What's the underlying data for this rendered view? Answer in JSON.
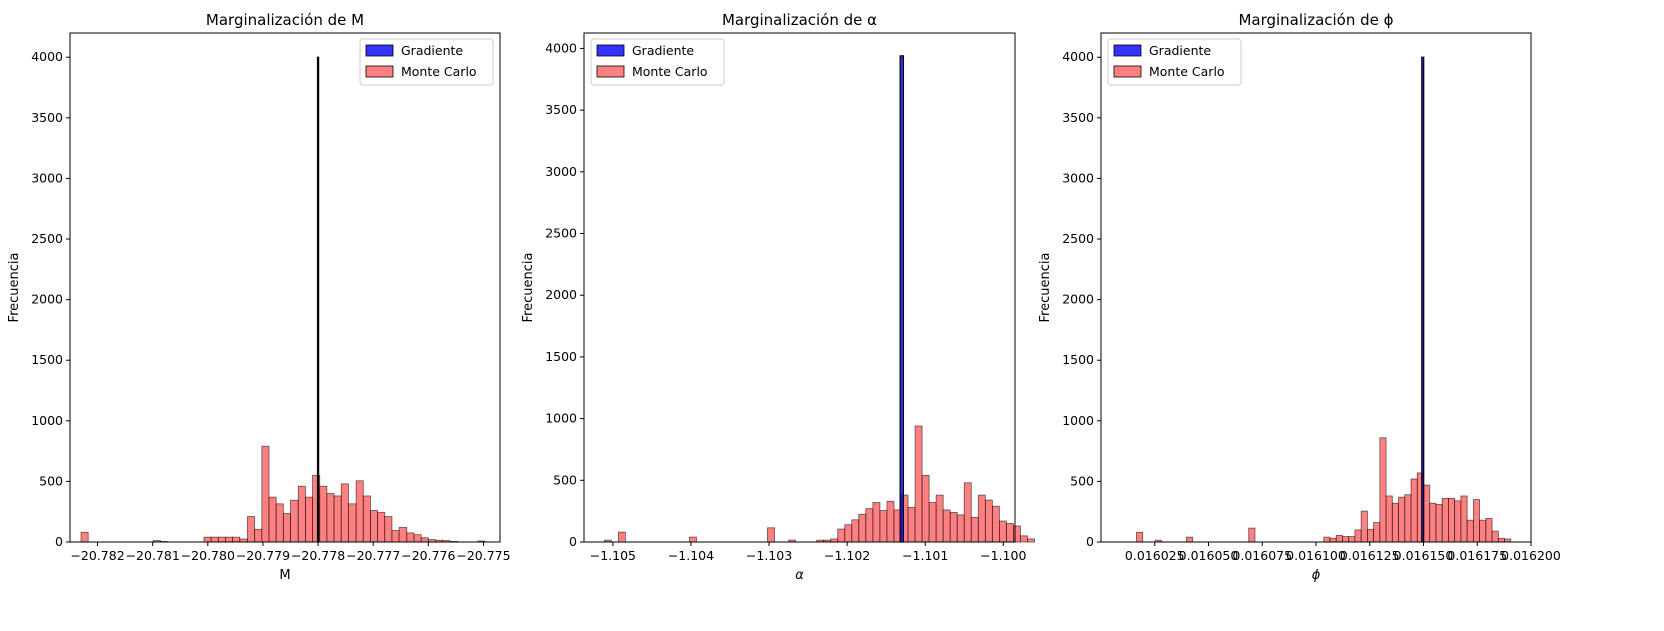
{
  "figure": {
    "panels_count": 3
  },
  "chart_data": [
    {
      "type": "bar",
      "title": "Marginalización de M",
      "xlabel": "M",
      "ylabel": "Frecuencia",
      "xlim": [
        -20.7825,
        -20.7747
      ],
      "ylim": [
        0,
        4200
      ],
      "xticks": [
        -20.782,
        -20.781,
        -20.78,
        -20.779,
        -20.778,
        -20.777,
        -20.776,
        -20.775
      ],
      "xtick_labels": [
        "−20.782",
        "−20.781",
        "−20.780",
        "−20.779",
        "−20.778",
        "−20.777",
        "−20.776",
        "−20.775"
      ],
      "yticks": [
        0,
        500,
        1000,
        1500,
        2000,
        2500,
        3000,
        3500,
        4000
      ],
      "ytick_labels": [
        "0",
        "500",
        "1000",
        "1500",
        "2000",
        "2500",
        "3000",
        "3500",
        "4000"
      ],
      "legend_position": "top-right",
      "grid": false,
      "series": [
        {
          "name": "Gradiente",
          "color": "#0000ff",
          "bins": [
            [
              -20.77801,
              -20.77799,
              4000
            ]
          ]
        },
        {
          "name": "Monte Carlo",
          "color": "#ff5555",
          "bins": [
            [
              -20.7823,
              -20.78217,
              80
            ],
            [
              -20.78099,
              -20.78086,
              12
            ],
            [
              -20.78086,
              -20.78073,
              5
            ],
            [
              -20.78007,
              -20.77994,
              40
            ],
            [
              -20.77994,
              -20.77981,
              40
            ],
            [
              -20.77981,
              -20.77968,
              40
            ],
            [
              -20.77968,
              -20.77955,
              40
            ],
            [
              -20.77955,
              -20.77942,
              40
            ],
            [
              -20.77942,
              -20.77928,
              25
            ],
            [
              -20.77928,
              -20.77915,
              210
            ],
            [
              -20.77915,
              -20.77902,
              105
            ],
            [
              -20.77902,
              -20.77889,
              790
            ],
            [
              -20.77889,
              -20.77876,
              370
            ],
            [
              -20.77876,
              -20.77863,
              315
            ],
            [
              -20.77863,
              -20.7785,
              235
            ],
            [
              -20.7785,
              -20.77836,
              345
            ],
            [
              -20.77836,
              -20.77823,
              460
            ],
            [
              -20.77823,
              -20.7781,
              370
            ],
            [
              -20.7781,
              -20.77797,
              550
            ],
            [
              -20.77797,
              -20.77784,
              460
            ],
            [
              -20.77784,
              -20.77771,
              400
            ],
            [
              -20.77771,
              -20.77758,
              380
            ],
            [
              -20.77758,
              -20.77745,
              480
            ],
            [
              -20.77745,
              -20.77731,
              315
            ],
            [
              -20.77731,
              -20.77718,
              505
            ],
            [
              -20.77718,
              -20.77705,
              380
            ],
            [
              -20.77705,
              -20.77692,
              260
            ],
            [
              -20.77692,
              -20.77679,
              245
            ],
            [
              -20.77679,
              -20.77666,
              210
            ],
            [
              -20.77666,
              -20.77653,
              95
            ],
            [
              -20.77653,
              -20.77639,
              120
            ],
            [
              -20.77639,
              -20.77626,
              75
            ],
            [
              -20.77626,
              -20.77613,
              60
            ],
            [
              -20.77613,
              -20.776,
              35
            ],
            [
              -20.776,
              -20.77587,
              20
            ],
            [
              -20.77587,
              -20.77574,
              15
            ],
            [
              -20.77574,
              -20.77561,
              12
            ],
            [
              -20.77561,
              -20.77547,
              5
            ],
            [
              -20.7751,
              -20.77497,
              8
            ]
          ]
        }
      ]
    },
    {
      "type": "bar",
      "title": "Marginalización de α",
      "xlabel": "α",
      "ylabel": "Frecuencia",
      "xlim": [
        -1.10537,
        -1.09985
      ],
      "ylim": [
        0,
        4125
      ],
      "xticks": [
        -1.105,
        -1.104,
        -1.103,
        -1.102,
        -1.101,
        -1.1
      ],
      "xtick_labels": [
        "−1.105",
        "−1.104",
        "−1.103",
        "−1.102",
        "−1.101",
        "−1.100"
      ],
      "yticks": [
        0,
        500,
        1000,
        1500,
        2000,
        2500,
        3000,
        3500,
        4000
      ],
      "ytick_labels": [
        "0",
        "500",
        "1000",
        "1500",
        "2000",
        "2500",
        "3000",
        "3500",
        "4000"
      ],
      "legend_position": "top-left",
      "grid": false,
      "series": [
        {
          "name": "Gradiente",
          "color": "#0000ff",
          "bins": [
            [
              -1.101321,
              -1.101279,
              3940
            ]
          ]
        },
        {
          "name": "Monte Carlo",
          "color": "#ff5555",
          "bins": [
            [
              -1.10511,
              -1.10502,
              15
            ],
            [
              -1.10493,
              -1.10484,
              80
            ],
            [
              -1.10402,
              -1.10393,
              40
            ],
            [
              -1.10302,
              -1.10293,
              115
            ],
            [
              -1.10275,
              -1.10266,
              15
            ],
            [
              -1.10239,
              -1.1023,
              15
            ],
            [
              -1.1023,
              -1.10221,
              15
            ],
            [
              -1.10221,
              -1.10212,
              25
            ],
            [
              -1.10212,
              -1.10203,
              105
            ],
            [
              -1.10203,
              -1.10194,
              140
            ],
            [
              -1.10194,
              -1.10185,
              180
            ],
            [
              -1.10185,
              -1.10176,
              225
            ],
            [
              -1.10176,
              -1.10167,
              270
            ],
            [
              -1.10167,
              -1.10158,
              320
            ],
            [
              -1.10158,
              -1.10149,
              255
            ],
            [
              -1.10149,
              -1.1014,
              330
            ],
            [
              -1.1014,
              -1.10131,
              260
            ],
            [
              -1.10131,
              -1.10122,
              380
            ],
            [
              -1.10122,
              -1.10113,
              280
            ],
            [
              -1.10113,
              -1.10104,
              940
            ],
            [
              -1.10104,
              -1.10095,
              540
            ],
            [
              -1.10095,
              -1.10086,
              320
            ],
            [
              -1.10086,
              -1.10077,
              380
            ],
            [
              -1.10077,
              -1.10068,
              260
            ],
            [
              -1.10068,
              -1.10059,
              240
            ],
            [
              -1.10059,
              -1.1005,
              220
            ],
            [
              -1.1005,
              -1.10041,
              480
            ],
            [
              -1.10041,
              -1.10032,
              200
            ],
            [
              -1.10032,
              -1.10023,
              380
            ],
            [
              -1.10023,
              -1.10014,
              340
            ],
            [
              -1.10014,
              -1.10005,
              290
            ],
            [
              -1.10005,
              -1.09996,
              170
            ],
            [
              -1.09996,
              -1.09987,
              150
            ],
            [
              -1.09987,
              -1.09978,
              130
            ],
            [
              -1.09978,
              -1.09969,
              50
            ],
            [
              -1.09969,
              -1.0996,
              25
            ]
          ]
        }
      ]
    },
    {
      "type": "bar",
      "title": "Marginalización de ϕ",
      "xlabel": "ϕ",
      "ylabel": "Frecuencia",
      "xlim": [
        0.016,
        0.0162
      ],
      "ylim": [
        0,
        4200
      ],
      "xticks": [
        0.016025,
        0.01605,
        0.016075,
        0.0161,
        0.016125,
        0.01615,
        0.016175,
        0.0162
      ],
      "xtick_labels": [
        "0.016025",
        "0.016050",
        "0.016075",
        "0.016100",
        "0.016125",
        "0.016150",
        "0.016175",
        "0.016200"
      ],
      "yticks": [
        0,
        500,
        1000,
        1500,
        2000,
        2500,
        3000,
        3500,
        4000
      ],
      "ytick_labels": [
        "0",
        "500",
        "1000",
        "1500",
        "2000",
        "2500",
        "3000",
        "3500",
        "4000"
      ],
      "legend_position": "top-left",
      "grid": false,
      "series": [
        {
          "name": "Gradiente",
          "color": "#0000ff",
          "bins": [
            [
              0.0161492,
              0.0161501,
              4000
            ]
          ]
        },
        {
          "name": "Monte Carlo",
          "color": "#ff5555",
          "bins": [
            [
              0.0160165,
              0.0160194,
              80
            ],
            [
              0.0160252,
              0.0160281,
              15
            ],
            [
              0.0160397,
              0.0160426,
              40
            ],
            [
              0.0160687,
              0.0160716,
              115
            ],
            [
              0.0161036,
              0.0161065,
              40
            ],
            [
              0.0161065,
              0.0161094,
              30
            ],
            [
              0.0161094,
              0.0161123,
              55
            ],
            [
              0.0161123,
              0.0161152,
              45
            ],
            [
              0.0161152,
              0.0161181,
              45
            ],
            [
              0.0161181,
              0.016121,
              100
            ],
            [
              0.016121,
              0.0161239,
              255
            ],
            [
              0.0161239,
              0.0161268,
              105
            ],
            [
              0.0161268,
              0.0161297,
              160
            ],
            [
              0.0161297,
              0.0161326,
              860
            ],
            [
              0.0161326,
              0.0161355,
              380
            ],
            [
              0.0161355,
              0.0161384,
              320
            ],
            [
              0.0161384,
              0.0161413,
              370
            ],
            [
              0.0161413,
              0.0161442,
              390
            ],
            [
              0.0161442,
              0.0161471,
              520
            ],
            [
              0.0161471,
              0.01615,
              570
            ],
            [
              0.01615,
              0.0161529,
              470
            ],
            [
              0.0161529,
              0.0161558,
              320
            ],
            [
              0.0161558,
              0.0161587,
              310
            ],
            [
              0.0161587,
              0.0161616,
              360
            ],
            [
              0.0161616,
              0.0161645,
              360
            ],
            [
              0.0161645,
              0.0161674,
              340
            ],
            [
              0.0161674,
              0.0161703,
              380
            ],
            [
              0.0161703,
              0.0161732,
              180
            ],
            [
              0.0161732,
              0.0161761,
              350
            ],
            [
              0.0161761,
              0.016179,
              180
            ],
            [
              0.016179,
              0.0161819,
              195
            ],
            [
              0.0161819,
              0.0161848,
              90
            ],
            [
              0.0161848,
              0.0161877,
              30
            ],
            [
              0.0161877,
              0.0161906,
              25
            ]
          ]
        }
      ]
    }
  ]
}
